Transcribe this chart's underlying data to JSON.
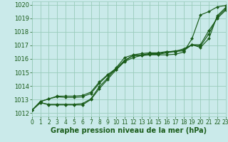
{
  "title": "Graphe pression niveau de la mer (hPa)",
  "bg_color": "#caeaea",
  "grid_color": "#99ccbb",
  "line_color": "#1a5c1a",
  "xlim": [
    0,
    23
  ],
  "ylim": [
    1011.75,
    1020.25
  ],
  "yticks": [
    1012,
    1013,
    1014,
    1015,
    1016,
    1017,
    1018,
    1019,
    1020
  ],
  "xticks": [
    0,
    1,
    2,
    3,
    4,
    5,
    6,
    7,
    8,
    9,
    10,
    11,
    12,
    13,
    14,
    15,
    16,
    17,
    18,
    19,
    20,
    21,
    22,
    23
  ],
  "series": [
    [
      1012.2,
      1012.8,
      1012.6,
      1012.6,
      1012.6,
      1012.6,
      1012.6,
      1013.0,
      1013.8,
      1014.5,
      1015.2,
      1015.85,
      1016.25,
      1016.25,
      1016.3,
      1016.3,
      1016.3,
      1016.35,
      1016.5,
      1017.5,
      1019.25,
      1019.5,
      1019.85,
      1019.95
    ],
    [
      1012.2,
      1012.85,
      1013.05,
      1013.25,
      1013.25,
      1013.25,
      1013.3,
      1013.55,
      1014.3,
      1014.85,
      1015.3,
      1015.9,
      1016.25,
      1016.3,
      1016.4,
      1016.4,
      1016.5,
      1016.6,
      1016.65,
      1017.05,
      1016.85,
      1017.5,
      1019.2,
      1019.8
    ],
    [
      1012.2,
      1012.85,
      1013.05,
      1013.2,
      1013.15,
      1013.15,
      1013.2,
      1013.45,
      1014.2,
      1014.8,
      1015.2,
      1015.8,
      1016.1,
      1016.25,
      1016.35,
      1016.35,
      1016.45,
      1016.55,
      1016.6,
      1017.05,
      1017.05,
      1018.1,
      1019.0,
      1019.6
    ],
    [
      1012.2,
      1012.75,
      1012.65,
      1012.65,
      1012.65,
      1012.65,
      1012.7,
      1013.05,
      1013.95,
      1014.6,
      1015.35,
      1016.1,
      1016.3,
      1016.4,
      1016.45,
      1016.45,
      1016.55,
      1016.55,
      1016.75,
      1017.05,
      1016.95,
      1017.85,
      1019.1,
      1019.7
    ]
  ],
  "marker": "D",
  "markersize": 2.0,
  "linewidth": 0.85,
  "ylabel_fontsize": 6.0,
  "xlabel_fontsize": 5.5,
  "title_fontsize": 7.0,
  "tick_labelsize": 5.5
}
